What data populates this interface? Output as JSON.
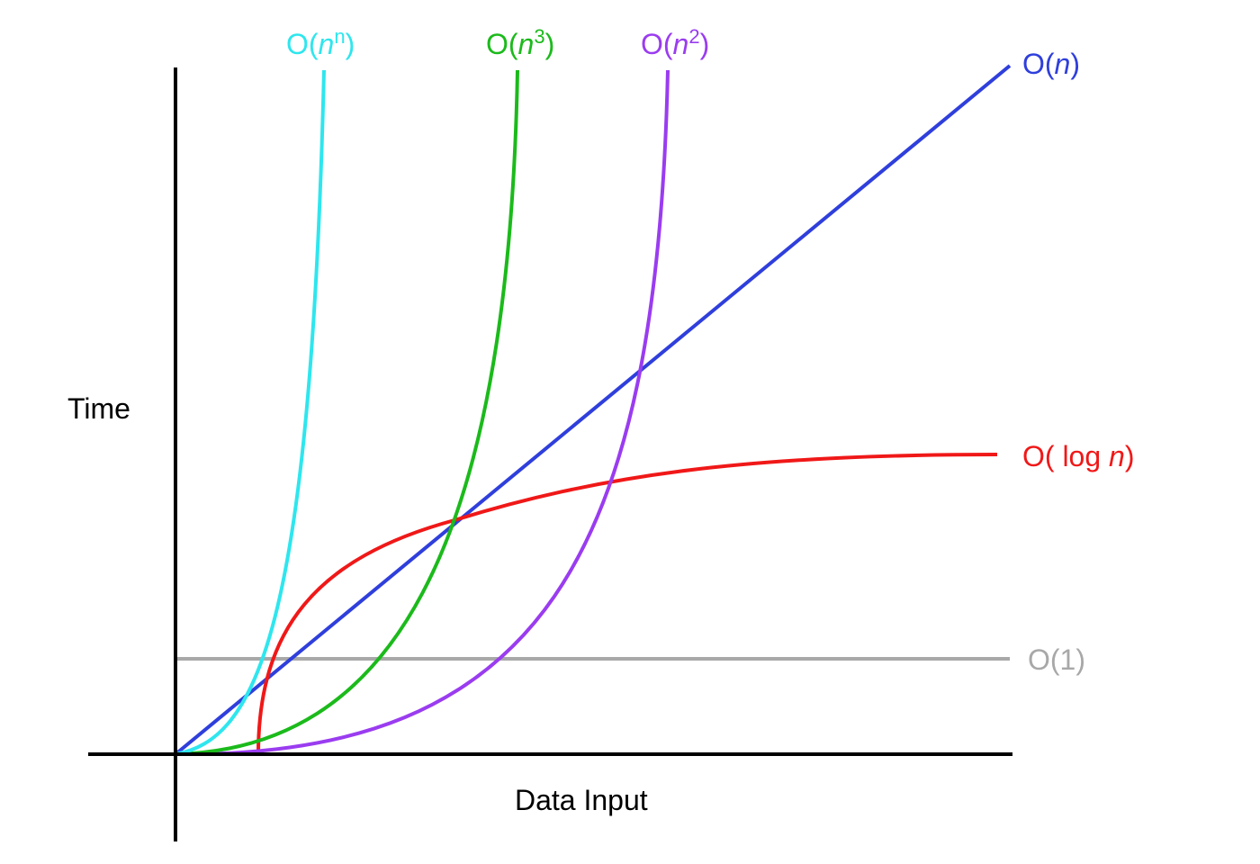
{
  "axes": {
    "y_label": "Time",
    "x_label": "Data Input"
  },
  "curves": [
    {
      "open": "O(",
      "var": "n",
      "sup": "n",
      "close": ")"
    },
    {
      "open": "O(",
      "var": "n",
      "sup": "3",
      "close": ")"
    },
    {
      "open": "O(",
      "var": "n",
      "sup": "2",
      "close": ")"
    },
    {
      "open": "O(",
      "var": "n",
      "close": ")"
    },
    {
      "open": "O( log ",
      "var": "n",
      "close": ")"
    },
    {
      "open": "O(1)"
    }
  ]
}
